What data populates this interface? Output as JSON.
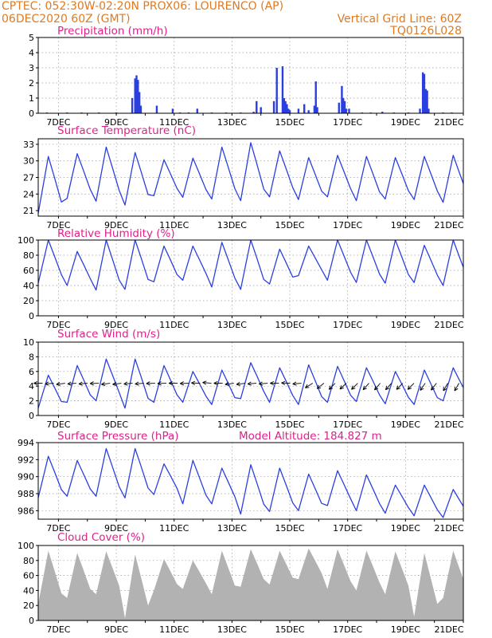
{
  "header": {
    "line1_left": "CPTEC:   052:30W-02:20N   PROX06: LOURENCO (AP)",
    "line2_left": "06DEC2020 60Z (GMT)",
    "line2_right": "Vertical Grid Line: 60Z",
    "line3_right": "TQ0126L028"
  },
  "colors": {
    "header": "#e07a20",
    "panel_title": "#e0208a",
    "series": "#2b3fe0",
    "cloud_fill": "#b2b2b2",
    "wind_arrow": "#000000"
  },
  "chart_data": [
    {
      "type": "bar",
      "title": "Precipitation (mm/h)",
      "ylim": [
        0,
        5
      ],
      "yticks": [
        0,
        1,
        2,
        3,
        4,
        5
      ],
      "xlim": [
        6.3,
        21
      ],
      "x_tick_labels": [
        "7DEC",
        "9DEC",
        "11DEC",
        "13DEC",
        "15DEC",
        "17DEC",
        "19DEC",
        "21DEC"
      ],
      "x": [
        6.6,
        7.3,
        7.8,
        8.4,
        9.0,
        9.55,
        9.65,
        9.7,
        9.75,
        9.8,
        9.85,
        10.4,
        10.95,
        11.2,
        11.5,
        11.8,
        12.3,
        12.8,
        13.3,
        13.75,
        13.85,
        14.0,
        14.45,
        14.55,
        14.75,
        14.8,
        14.85,
        14.9,
        14.95,
        15.0,
        15.3,
        15.5,
        15.65,
        15.85,
        15.9,
        15.95,
        16.7,
        16.8,
        16.85,
        16.9,
        16.95,
        17.05,
        17.5,
        17.8,
        18.2,
        18.6,
        19.1,
        19.5,
        19.6,
        19.65,
        19.7,
        19.75,
        19.8,
        20.3,
        20.6
      ],
      "values": [
        0.05,
        0.05,
        0.05,
        0.05,
        0.05,
        1.0,
        2.3,
        2.5,
        2.2,
        1.4,
        0.5,
        0.5,
        0.3,
        0.05,
        0.05,
        0.3,
        0.05,
        0.05,
        0.05,
        0.1,
        0.8,
        0.4,
        0.8,
        3.0,
        3.1,
        1.0,
        0.8,
        0.6,
        0.3,
        0.2,
        0.3,
        0.6,
        0.2,
        0.5,
        2.1,
        0.4,
        0.7,
        1.8,
        1.0,
        0.8,
        0.3,
        0.3,
        0.05,
        0.05,
        0.1,
        0.05,
        0.05,
        0.3,
        2.7,
        2.6,
        1.6,
        1.5,
        0.3,
        0.05,
        0.05
      ]
    },
    {
      "type": "line",
      "title": "Surface Temperature (nC)",
      "ylim": [
        20,
        34
      ],
      "yticks": [
        21,
        24,
        27,
        30,
        33
      ],
      "xlim": [
        6.3,
        21
      ],
      "x_tick_labels": [
        "7DEC",
        "9DEC",
        "11DEC",
        "13DEC",
        "15DEC",
        "17DEC",
        "19DEC",
        "21DEC"
      ],
      "series": [
        {
          "daily_max": [
            30.8,
            31.3,
            32.5,
            31.5,
            30.2,
            30.5,
            32.5,
            33.3,
            31.8,
            30.6,
            31.0,
            30.8,
            30.6,
            30.8,
            31.0
          ],
          "daily_min": [
            20.5,
            23.2,
            22.7,
            22.0,
            23.7,
            23.4,
            23.1,
            22.8,
            23.5,
            23.0,
            23.5,
            22.8,
            23.1,
            23.0,
            22.5
          ]
        }
      ]
    },
    {
      "type": "line",
      "title": "Relative Humidity (%)",
      "ylim": [
        0,
        100
      ],
      "yticks": [
        0,
        20,
        40,
        60,
        80,
        100
      ],
      "xlim": [
        6.3,
        21
      ],
      "x_tick_labels": [
        "7DEC",
        "9DEC",
        "11DEC",
        "13DEC",
        "15DEC",
        "17DEC",
        "19DEC",
        "21DEC"
      ],
      "series": [
        {
          "daily_max": [
            100,
            85,
            100,
            100,
            92,
            92,
            97,
            100,
            88,
            92,
            100,
            100,
            100,
            93,
            100
          ],
          "daily_min": [
            43,
            40,
            34,
            35,
            45,
            47,
            38,
            35,
            42,
            53,
            47,
            44,
            43,
            44,
            40
          ]
        }
      ]
    },
    {
      "type": "line",
      "title": "Surface Wind (m/s)",
      "ylim": [
        0,
        10
      ],
      "yticks": [
        0,
        2,
        4,
        6,
        8,
        10
      ],
      "xlim": [
        6.3,
        21
      ],
      "x_tick_labels": [
        "7DEC",
        "9DEC",
        "11DEC",
        "13DEC",
        "15DEC",
        "17DEC",
        "19DEC",
        "21DEC"
      ],
      "series": [
        {
          "daily_max": [
            5.5,
            6.8,
            7.7,
            7.7,
            6.8,
            6.0,
            6.2,
            7.2,
            6.5,
            6.9,
            6.7,
            6.5,
            6.0,
            6.2,
            6.5
          ],
          "daily_min": [
            1.0,
            1.8,
            2.0,
            1.0,
            1.8,
            1.8,
            1.5,
            2.3,
            1.8,
            1.5,
            1.8,
            1.9,
            1.6,
            1.5,
            2.0
          ]
        }
      ],
      "wind_arrow_directions_deg": [
        270,
        265,
        262,
        265,
        265,
        268,
        262,
        262,
        265,
        265,
        268,
        268,
        270,
        268,
        272,
        275,
        270,
        262,
        262,
        265,
        265,
        270,
        272,
        265,
        238,
        232,
        225,
        228,
        225,
        222,
        220,
        222,
        225,
        225,
        215,
        218,
        210,
        210
      ]
    },
    {
      "type": "line",
      "title": "Surface Pressure (hPa)",
      "annotation": "Model Altitude: 184.827 m",
      "ylim": [
        985,
        994
      ],
      "yticks": [
        986,
        988,
        990,
        992,
        994
      ],
      "xlim": [
        6.3,
        21
      ],
      "x_tick_labels": [
        "7DEC",
        "9DEC",
        "11DEC",
        "13DEC",
        "15DEC",
        "17DEC",
        "19DEC",
        "21DEC"
      ],
      "series": [
        {
          "daily_max": [
            992.4,
            991.9,
            993.3,
            993.3,
            991.5,
            991.9,
            991.0,
            991.4,
            991.0,
            990.3,
            990.7,
            990.2,
            989.0,
            989.0,
            988.5
          ],
          "daily_min": [
            987.5,
            987.7,
            987.7,
            987.5,
            987.9,
            986.8,
            986.8,
            985.6,
            985.9,
            986.0,
            986.6,
            986.0,
            985.7,
            985.4,
            985.2
          ]
        }
      ]
    },
    {
      "type": "area",
      "title": "Cloud Cover (%)",
      "ylim": [
        0,
        100
      ],
      "yticks": [
        0,
        20,
        40,
        60,
        80,
        100
      ],
      "xlim": [
        6.3,
        21
      ],
      "x_tick_labels": [
        "7DEC",
        "9DEC",
        "11DEC",
        "13DEC",
        "15DEC",
        "17DEC",
        "19DEC",
        "21DEC"
      ],
      "series": [
        {
          "daily_max": [
            93,
            90,
            92,
            88,
            82,
            80,
            93,
            95,
            93,
            96,
            95,
            93,
            92,
            90,
            93
          ],
          "daily_min": [
            22,
            30,
            35,
            3,
            40,
            42,
            35,
            45,
            48,
            55,
            42,
            40,
            35,
            5,
            30
          ]
        }
      ]
    }
  ]
}
